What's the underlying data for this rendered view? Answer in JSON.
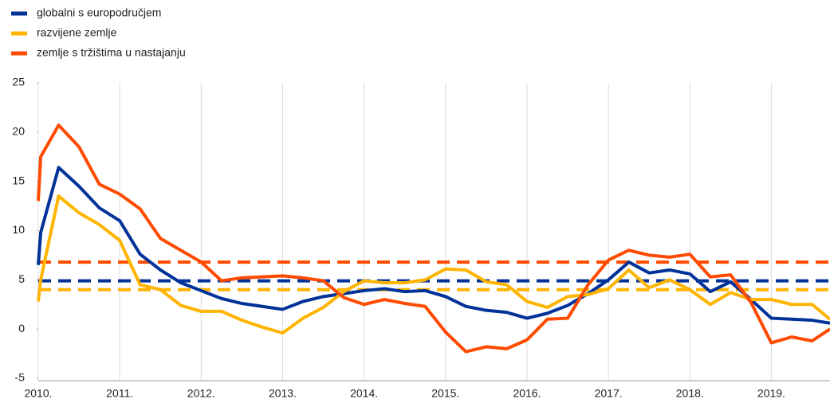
{
  "chart_data": {
    "type": "line",
    "x": [
      2010,
      2010.03,
      2010.25,
      2010.5,
      2010.75,
      2011,
      2011.25,
      2011.5,
      2011.75,
      2012,
      2012.25,
      2012.5,
      2012.75,
      2013,
      2013.25,
      2013.5,
      2013.75,
      2014,
      2014.25,
      2014.5,
      2014.75,
      2015,
      2015.25,
      2015.5,
      2015.75,
      2016,
      2016.25,
      2016.5,
      2016.75,
      2017,
      2017.25,
      2017.5,
      2017.75,
      2018,
      2018.25,
      2018.5,
      2018.75,
      2019,
      2019.25,
      2019.5,
      2019.72
    ],
    "series": [
      {
        "name": "globalni s europodručjem",
        "color": "#003299",
        "values": [
          6.5,
          9.8,
          16.4,
          14.5,
          12.3,
          11.0,
          7.6,
          6.0,
          4.7,
          3.9,
          3.1,
          2.6,
          2.3,
          2.0,
          2.8,
          3.3,
          3.6,
          3.9,
          4.1,
          3.8,
          3.9,
          3.3,
          2.3,
          1.9,
          1.7,
          1.1,
          1.6,
          2.4,
          3.6,
          5.0,
          6.8,
          5.7,
          6.0,
          5.6,
          3.8,
          4.8,
          3.0,
          1.1,
          1.0,
          0.9,
          0.6
        ]
      },
      {
        "name": "razvijene zemlje",
        "color": "#ffb400",
        "values": [
          2.8,
          5.0,
          13.5,
          11.8,
          10.6,
          9.0,
          4.5,
          4.0,
          2.4,
          1.8,
          1.8,
          0.9,
          0.2,
          -0.4,
          1.1,
          2.2,
          3.8,
          4.9,
          4.7,
          4.7,
          5.0,
          6.1,
          6.0,
          4.8,
          4.5,
          2.8,
          2.2,
          3.3,
          3.5,
          4.1,
          6.0,
          4.2,
          5.0,
          4.0,
          2.5,
          3.7,
          3.0,
          3.0,
          2.5,
          2.5,
          1.0
        ]
      },
      {
        "name": "zemlje s tržištima u nastajanju",
        "color": "#ff4b00",
        "values": [
          13.0,
          17.5,
          20.7,
          18.5,
          14.7,
          13.7,
          12.2,
          9.2,
          8.0,
          6.8,
          4.9,
          5.2,
          5.3,
          5.4,
          5.2,
          4.9,
          3.2,
          2.5,
          3.0,
          2.6,
          2.3,
          -0.3,
          -2.3,
          -1.8,
          -2.0,
          -1.1,
          1.0,
          1.1,
          4.5,
          7.0,
          8.0,
          7.5,
          7.3,
          7.6,
          5.3,
          5.5,
          2.7,
          -1.4,
          -0.8,
          -1.2,
          0.0
        ]
      }
    ],
    "hlines": [
      {
        "value": 6.8,
        "color": "#ff4b00",
        "dashed": true
      },
      {
        "value": 4.9,
        "color": "#003299",
        "dashed": true
      },
      {
        "value": 4.0,
        "color": "#ffb400",
        "dashed": true
      }
    ],
    "xlim": [
      2010,
      2019.72
    ],
    "xticks": [
      {
        "value": 2010,
        "label": "2010."
      },
      {
        "value": 2011,
        "label": "2011."
      },
      {
        "value": 2012,
        "label": "2012."
      },
      {
        "value": 2013,
        "label": "2013."
      },
      {
        "value": 2014,
        "label": "2014."
      },
      {
        "value": 2015,
        "label": "2015."
      },
      {
        "value": 2016,
        "label": "2016."
      },
      {
        "value": 2017,
        "label": "2017."
      },
      {
        "value": 2018,
        "label": "2018."
      },
      {
        "value": 2019,
        "label": "2019."
      }
    ],
    "ylim": [
      -5,
      25
    ],
    "yticks": [
      -5,
      0,
      5,
      10,
      15,
      20,
      25
    ],
    "grid": "x",
    "legend": "top-left"
  }
}
